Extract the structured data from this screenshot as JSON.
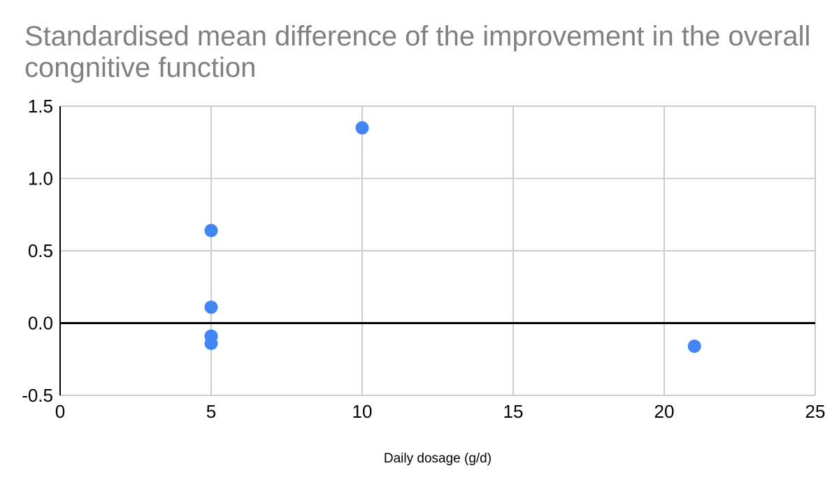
{
  "page": {
    "background_color": "#ffffff"
  },
  "title": {
    "text": "Standardised mean difference of the improvement in the overall congnitive function",
    "line1": "Standardised mean difference of the improvement in the overall",
    "line2": "congnitive function",
    "color": "#808080"
  },
  "chart_data": {
    "type": "scatter",
    "title": "Standardised mean difference of the improvement in the overall congnitive function",
    "xlabel": "Daily dosage (g/d)",
    "ylabel": "",
    "xlim": [
      0,
      25
    ],
    "ylim": [
      -0.5,
      1.5
    ],
    "x_ticks": [
      0,
      5,
      10,
      15,
      20,
      25
    ],
    "x_tick_labels": [
      "0",
      "5",
      "10",
      "15",
      "20",
      "25"
    ],
    "y_ticks": [
      -0.5,
      0,
      0.5,
      1,
      1.5
    ],
    "y_tick_labels": [
      "-0.5",
      "0.0",
      "0.5",
      "1.0",
      "1.5"
    ],
    "points": [
      {
        "x": 5,
        "y": 0.64
      },
      {
        "x": 5,
        "y": 0.11
      },
      {
        "x": 5,
        "y": -0.09
      },
      {
        "x": 5,
        "y": -0.14
      },
      {
        "x": 10,
        "y": 1.35
      },
      {
        "x": 21,
        "y": -0.16
      }
    ],
    "grid": true,
    "legend": "none",
    "zero_baseline": true,
    "colors": {
      "point": "#4285f4",
      "gridline": "#cccccc",
      "zero_line": "#000000",
      "axis_line": "#000000",
      "tick_label": "#000000",
      "axis_title": "#000000"
    }
  }
}
